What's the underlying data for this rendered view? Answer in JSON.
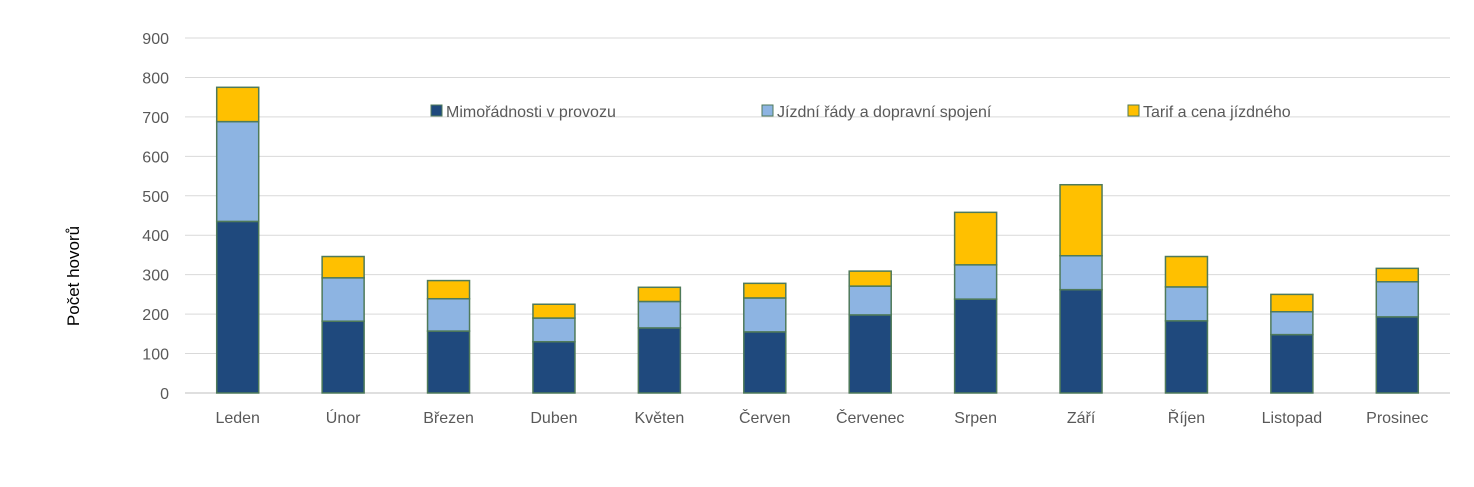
{
  "chart_data": {
    "type": "bar",
    "stacked": true,
    "title": "",
    "xlabel": "",
    "ylabel": "Počet hovorů",
    "ylim": [
      0,
      900
    ],
    "yticks": [
      0,
      100,
      200,
      300,
      400,
      500,
      600,
      700,
      800,
      900
    ],
    "grid": true,
    "legend_position": "top",
    "categories": [
      "Leden",
      "Únor",
      "Březen",
      "Duben",
      "Květen",
      "Červen",
      "Červenec",
      "Srpen",
      "Září",
      "Říjen",
      "Listopad",
      "Prosinec"
    ],
    "series": [
      {
        "name": "Mimořádnosti v provozu",
        "color": "#1F497D",
        "values": [
          435,
          182,
          157,
          130,
          165,
          155,
          198,
          238,
          262,
          183,
          148,
          193
        ]
      },
      {
        "name": "Jízdní řády a dopravní spojení",
        "color": "#8DB4E2",
        "values": [
          253,
          110,
          82,
          60,
          67,
          86,
          73,
          87,
          86,
          86,
          58,
          89
        ]
      },
      {
        "name": "Tarif a cena jízdného",
        "color": "#FFC000",
        "values": [
          87,
          54,
          46,
          35,
          36,
          37,
          38,
          133,
          180,
          77,
          44,
          34
        ]
      }
    ],
    "bar_outline_color": "#4F7A5A"
  }
}
